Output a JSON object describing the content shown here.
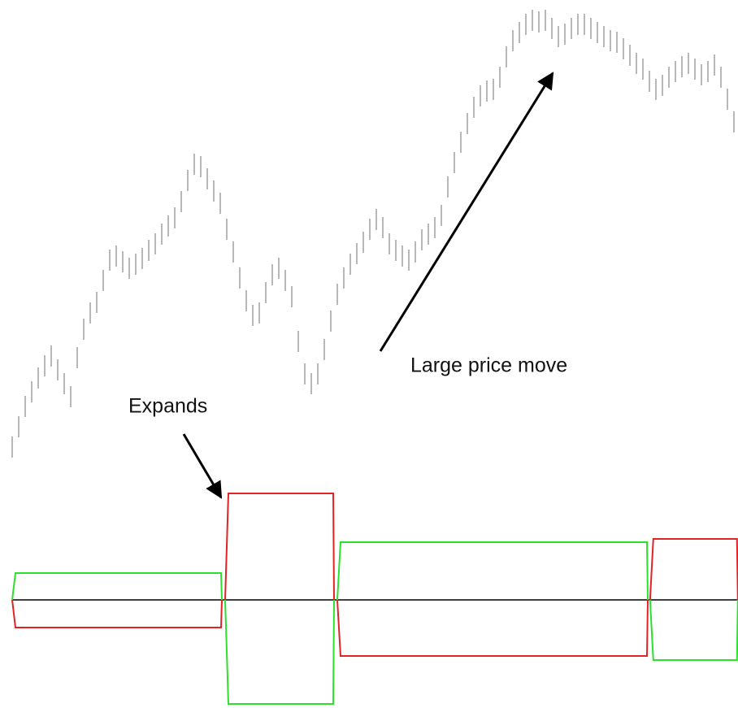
{
  "annotations": [
    {
      "text": "Large price move"
    },
    {
      "text": "Expands"
    }
  ],
  "chart_data": [
    {
      "type": "range",
      "color": "#a6a6a6",
      "ylim": [
        0,
        600
      ],
      "high": [
        63,
        88,
        113,
        131,
        148,
        163,
        175,
        158,
        141,
        125,
        173,
        208,
        228,
        241,
        268,
        293,
        298,
        291,
        283,
        288,
        295,
        305,
        313,
        325,
        335,
        345,
        365,
        391,
        411,
        408,
        393,
        378,
        363,
        331,
        303,
        271,
        243,
        225,
        228,
        253,
        275,
        283,
        268,
        248,
        193,
        153,
        141,
        153,
        183,
        218,
        251,
        271,
        288,
        301,
        315,
        331,
        343,
        333,
        313,
        305,
        298,
        293,
        303,
        318,
        325,
        333,
        348,
        383,
        413,
        438,
        461,
        481,
        495,
        501,
        503,
        518,
        543,
        563,
        573,
        583,
        588,
        586,
        588,
        578,
        568,
        571,
        578,
        583,
        583,
        578,
        573,
        568,
        563,
        561,
        553,
        545,
        535,
        528,
        513,
        503,
        508,
        518,
        525,
        531,
        535,
        528,
        521,
        525,
        533,
        518,
        491,
        463
      ],
      "low": [
        37,
        62,
        87,
        105,
        122,
        137,
        149,
        132,
        115,
        99,
        147,
        182,
        202,
        215,
        242,
        267,
        272,
        265,
        257,
        262,
        269,
        279,
        287,
        299,
        309,
        319,
        339,
        365,
        385,
        382,
        367,
        352,
        337,
        305,
        277,
        245,
        217,
        199,
        202,
        227,
        249,
        257,
        242,
        222,
        167,
        127,
        115,
        127,
        157,
        192,
        225,
        245,
        262,
        275,
        289,
        305,
        317,
        307,
        287,
        279,
        272,
        267,
        277,
        292,
        299,
        307,
        322,
        357,
        387,
        412,
        435,
        455,
        469,
        475,
        477,
        492,
        517,
        537,
        547,
        557,
        562,
        560,
        562,
        552,
        542,
        545,
        552,
        557,
        557,
        552,
        547,
        542,
        537,
        535,
        527,
        519,
        509,
        502,
        487,
        477,
        482,
        492,
        499,
        505,
        509,
        502,
        495,
        499,
        507,
        492,
        465,
        437
      ]
    },
    {
      "type": "bands",
      "ylim": [
        -133,
        133
      ],
      "zero_color": "#000000",
      "segments": [
        {
          "from": 0,
          "to": 32.25,
          "upper": 33,
          "lower": -34,
          "upper_color": "#2ee02e",
          "lower_color": "#e02424"
        },
        {
          "from": 32.75,
          "to": 49.5,
          "upper": 131,
          "lower": -128,
          "upper_color": "#e02424",
          "lower_color": "#2ee02e"
        },
        {
          "from": 50,
          "to": 97.75,
          "upper": 71,
          "lower": -69,
          "upper_color": "#2ee02e",
          "lower_color": "#e02424"
        },
        {
          "from": 98.1,
          "to": 111.6,
          "upper": 75,
          "lower": -74,
          "upper_color": "#e02424",
          "lower_color": "#2ee02e"
        }
      ]
    }
  ]
}
